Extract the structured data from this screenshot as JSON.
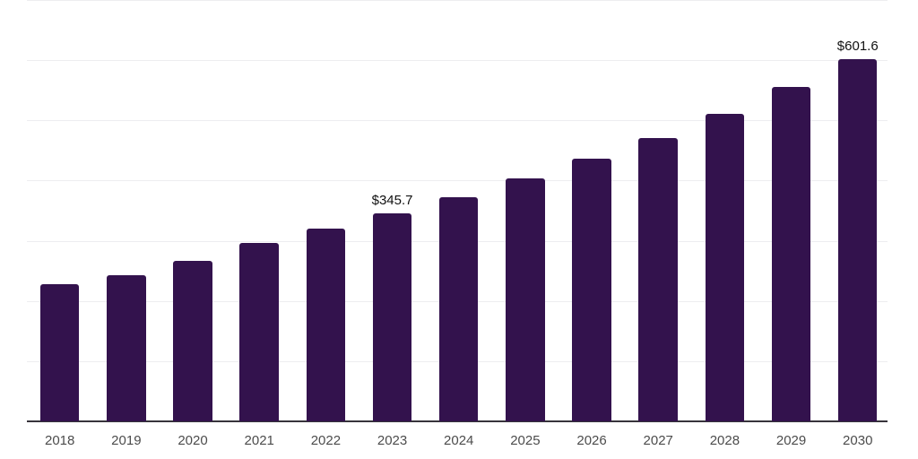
{
  "chart_data": {
    "type": "bar",
    "title": "",
    "xlabel": "",
    "ylabel": "",
    "categories": [
      "2018",
      "2019",
      "2020",
      "2021",
      "2022",
      "2023",
      "2024",
      "2025",
      "2026",
      "2027",
      "2028",
      "2029",
      "2030"
    ],
    "values": [
      228.0,
      243.5,
      267.0,
      297.0,
      320.0,
      345.7,
      372.0,
      403.0,
      436.0,
      471.0,
      511.0,
      555.0,
      601.6
    ],
    "bar_labels": [
      "",
      "",
      "",
      "",
      "",
      "$345.7",
      "",
      "",
      "",
      "",
      "",
      "",
      "$601.6"
    ],
    "ylim": [
      0,
      700
    ],
    "gridline_step": 100,
    "grid": "horizontal-only",
    "legend": "none",
    "colors": {
      "bar_fill": "#33124d",
      "gridline": "#ededf0",
      "axis_line": "#37343b",
      "tick_label": "#4c4c4c",
      "data_label": "#111111",
      "background": "#ffffff"
    }
  }
}
